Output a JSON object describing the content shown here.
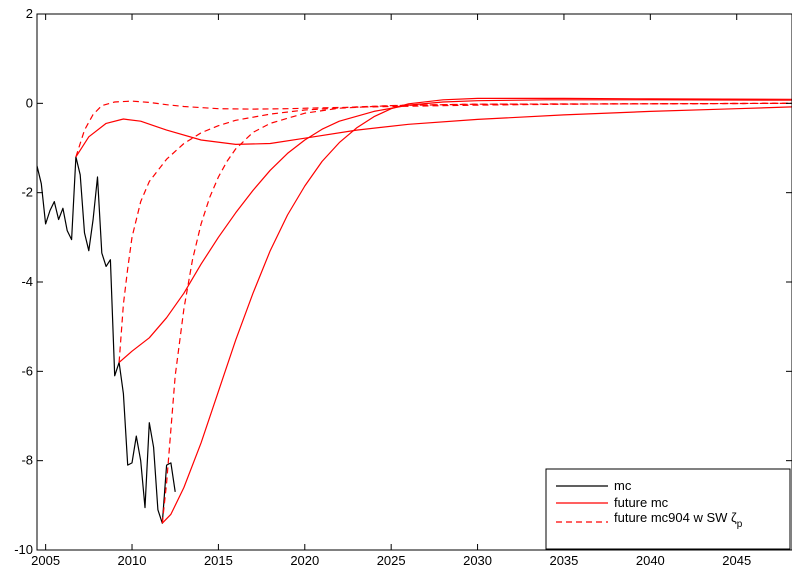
{
  "chart_data": {
    "type": "line",
    "title": "",
    "xlabel": "",
    "ylabel": "",
    "xlim": [
      2004.5,
      2048.2
    ],
    "ylim": [
      -10,
      2
    ],
    "xticks": [
      2005,
      2010,
      2015,
      2020,
      2025,
      2030,
      2035,
      2040,
      2045
    ],
    "yticks": [
      -10,
      -8,
      -6,
      -4,
      -2,
      0,
      2
    ],
    "grid": false,
    "legend_position": "bottom-right",
    "legend": [
      {
        "label": "mc",
        "color": "#000000",
        "style": "solid"
      },
      {
        "label": "future mc",
        "color": "#ff0000",
        "style": "solid"
      },
      {
        "label": "future mc904 w SW ζ",
        "subscript": "p",
        "color": "#ff0000",
        "style": "dashed"
      }
    ],
    "series": [
      {
        "name": "mc",
        "color": "#000000",
        "style": "solid",
        "points": [
          [
            2004.5,
            -1.4
          ],
          [
            2004.75,
            -1.8
          ],
          [
            2005.0,
            -2.7
          ],
          [
            2005.25,
            -2.4
          ],
          [
            2005.5,
            -2.2
          ],
          [
            2005.75,
            -2.6
          ],
          [
            2006.0,
            -2.35
          ],
          [
            2006.25,
            -2.85
          ],
          [
            2006.5,
            -3.05
          ],
          [
            2006.75,
            -1.2
          ],
          [
            2007.0,
            -1.6
          ],
          [
            2007.25,
            -2.9
          ],
          [
            2007.5,
            -3.3
          ],
          [
            2007.75,
            -2.6
          ],
          [
            2008.0,
            -1.65
          ],
          [
            2008.25,
            -3.35
          ],
          [
            2008.5,
            -3.65
          ],
          [
            2008.75,
            -3.5
          ],
          [
            2009.0,
            -6.1
          ],
          [
            2009.25,
            -5.8
          ],
          [
            2009.5,
            -6.5
          ],
          [
            2009.75,
            -8.1
          ],
          [
            2010.0,
            -8.05
          ],
          [
            2010.25,
            -7.45
          ],
          [
            2010.5,
            -8.0
          ],
          [
            2010.75,
            -9.05
          ],
          [
            2011.0,
            -7.15
          ],
          [
            2011.25,
            -7.7
          ],
          [
            2011.5,
            -9.1
          ],
          [
            2011.75,
            -9.4
          ],
          [
            2012.0,
            -8.1
          ],
          [
            2012.25,
            -8.05
          ],
          [
            2012.5,
            -8.7
          ]
        ]
      },
      {
        "name": "future mc",
        "color": "#ff0000",
        "style": "solid",
        "points": [
          [
            2006.75,
            -1.2
          ],
          [
            2007.5,
            -0.75
          ],
          [
            2008.5,
            -0.45
          ],
          [
            2009.5,
            -0.35
          ],
          [
            2010.5,
            -0.4
          ],
          [
            2012,
            -0.6
          ],
          [
            2014,
            -0.82
          ],
          [
            2016,
            -0.92
          ],
          [
            2018,
            -0.9
          ],
          [
            2020,
            -0.78
          ],
          [
            2023,
            -0.6
          ],
          [
            2026,
            -0.47
          ],
          [
            2030,
            -0.36
          ],
          [
            2035,
            -0.26
          ],
          [
            2040,
            -0.18
          ],
          [
            2045,
            -0.12
          ],
          [
            2048.2,
            -0.08
          ]
        ]
      },
      {
        "name": "future mc",
        "color": "#ff0000",
        "style": "solid",
        "points": [
          [
            2009.25,
            -5.8
          ],
          [
            2010,
            -5.55
          ],
          [
            2011,
            -5.25
          ],
          [
            2012,
            -4.8
          ],
          [
            2013,
            -4.25
          ],
          [
            2014,
            -3.6
          ],
          [
            2015,
            -3.0
          ],
          [
            2016,
            -2.45
          ],
          [
            2017,
            -1.95
          ],
          [
            2018,
            -1.5
          ],
          [
            2019,
            -1.12
          ],
          [
            2020,
            -0.82
          ],
          [
            2021,
            -0.58
          ],
          [
            2022,
            -0.4
          ],
          [
            2024,
            -0.18
          ],
          [
            2026,
            -0.04
          ],
          [
            2028,
            0.03
          ],
          [
            2030,
            0.06
          ],
          [
            2034,
            0.08
          ],
          [
            2040,
            0.08
          ],
          [
            2048.2,
            0.07
          ]
        ]
      },
      {
        "name": "future mc",
        "color": "#ff0000",
        "style": "solid",
        "points": [
          [
            2011.75,
            -9.4
          ],
          [
            2012.25,
            -9.2
          ],
          [
            2013,
            -8.6
          ],
          [
            2014,
            -7.6
          ],
          [
            2015,
            -6.45
          ],
          [
            2016,
            -5.3
          ],
          [
            2017,
            -4.25
          ],
          [
            2018,
            -3.3
          ],
          [
            2019,
            -2.5
          ],
          [
            2020,
            -1.85
          ],
          [
            2021,
            -1.3
          ],
          [
            2022,
            -0.88
          ],
          [
            2023,
            -0.55
          ],
          [
            2024,
            -0.3
          ],
          [
            2025,
            -0.12
          ],
          [
            2026,
            -0.01
          ],
          [
            2028,
            0.08
          ],
          [
            2030,
            0.11
          ],
          [
            2035,
            0.11
          ],
          [
            2040,
            0.1
          ],
          [
            2048.2,
            0.09
          ]
        ]
      },
      {
        "name": "future mc904 w SW ζp",
        "color": "#ff0000",
        "style": "dashed",
        "points": [
          [
            2006.75,
            -1.2
          ],
          [
            2007.25,
            -0.6
          ],
          [
            2007.75,
            -0.25
          ],
          [
            2008.25,
            -0.05
          ],
          [
            2009,
            0.03
          ],
          [
            2010,
            0.05
          ],
          [
            2011,
            0.02
          ],
          [
            2012,
            -0.03
          ],
          [
            2013,
            -0.07
          ],
          [
            2015,
            -0.12
          ],
          [
            2017,
            -0.13
          ],
          [
            2019,
            -0.12
          ],
          [
            2021,
            -0.1
          ],
          [
            2025,
            -0.07
          ],
          [
            2030,
            -0.04
          ],
          [
            2035,
            -0.02
          ],
          [
            2040,
            -0.01
          ],
          [
            2048.2,
            0.0
          ]
        ]
      },
      {
        "name": "future mc904 w SW ζp",
        "color": "#ff0000",
        "style": "dashed",
        "points": [
          [
            2009.25,
            -5.8
          ],
          [
            2009.5,
            -4.5
          ],
          [
            2009.75,
            -3.7
          ],
          [
            2010,
            -3.0
          ],
          [
            2010.5,
            -2.2
          ],
          [
            2011,
            -1.75
          ],
          [
            2012,
            -1.25
          ],
          [
            2013,
            -0.9
          ],
          [
            2014,
            -0.66
          ],
          [
            2015,
            -0.5
          ],
          [
            2016,
            -0.38
          ],
          [
            2018,
            -0.24
          ],
          [
            2020,
            -0.15
          ],
          [
            2023,
            -0.08
          ],
          [
            2026,
            -0.04
          ],
          [
            2030,
            -0.02
          ],
          [
            2040,
            -0.01
          ],
          [
            2048.2,
            0.0
          ]
        ]
      },
      {
        "name": "future mc904 w SW ζp",
        "color": "#ff0000",
        "style": "dashed",
        "points": [
          [
            2011.75,
            -9.4
          ],
          [
            2012,
            -8.5
          ],
          [
            2012.25,
            -7.3
          ],
          [
            2012.5,
            -6.1
          ],
          [
            2013,
            -4.6
          ],
          [
            2013.5,
            -3.5
          ],
          [
            2014,
            -2.7
          ],
          [
            2014.5,
            -2.1
          ],
          [
            2015,
            -1.65
          ],
          [
            2015.5,
            -1.3
          ],
          [
            2016,
            -1.02
          ],
          [
            2017,
            -0.65
          ],
          [
            2018,
            -0.45
          ],
          [
            2020,
            -0.22
          ],
          [
            2022,
            -0.11
          ],
          [
            2025,
            -0.05
          ],
          [
            2030,
            -0.02
          ],
          [
            2040,
            -0.01
          ],
          [
            2048.2,
            0.0
          ]
        ]
      }
    ]
  }
}
